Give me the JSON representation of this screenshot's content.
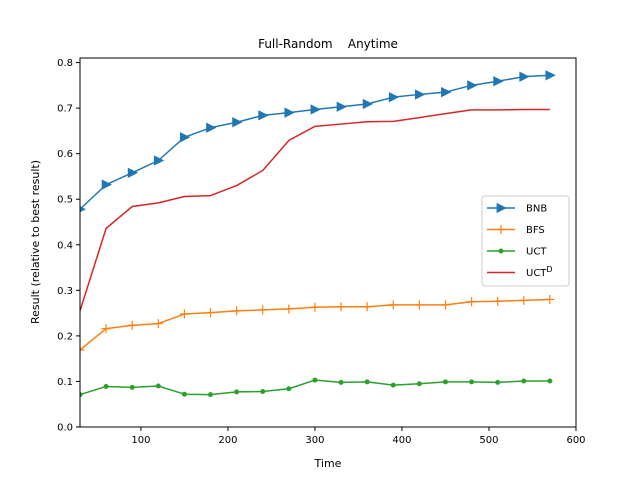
{
  "chart_data": {
    "type": "line",
    "title": "Full-Random    Anytime",
    "xlabel": "Time",
    "ylabel": "Result (relative to best result)",
    "xlim": [
      30,
      600
    ],
    "ylim": [
      0.0,
      0.81
    ],
    "xticks": [
      100,
      200,
      300,
      400,
      500,
      600
    ],
    "yticks": [
      0.0,
      0.1,
      0.2,
      0.3,
      0.4,
      0.5,
      0.6,
      0.7,
      0.8
    ],
    "legend_position": "center-right",
    "grid": false,
    "x": [
      30,
      60,
      90,
      120,
      150,
      180,
      210,
      240,
      270,
      300,
      330,
      360,
      390,
      420,
      450,
      480,
      510,
      540,
      570
    ],
    "series": [
      {
        "name": "BNB",
        "color": "#1f77b4",
        "marker": "triangle-right",
        "values": [
          0.478,
          0.532,
          0.558,
          0.585,
          0.636,
          0.657,
          0.669,
          0.684,
          0.69,
          0.697,
          0.703,
          0.709,
          0.724,
          0.73,
          0.735,
          0.75,
          0.759,
          0.769,
          0.772
        ]
      },
      {
        "name": "BFS",
        "color": "#ff7f0e",
        "marker": "plus",
        "values": [
          0.169,
          0.216,
          0.223,
          0.227,
          0.248,
          0.251,
          0.255,
          0.257,
          0.259,
          0.263,
          0.264,
          0.264,
          0.268,
          0.268,
          0.268,
          0.275,
          0.276,
          0.278,
          0.28
        ]
      },
      {
        "name": "UCT",
        "color": "#2ca02c",
        "marker": "dot",
        "values": [
          0.071,
          0.089,
          0.087,
          0.09,
          0.072,
          0.071,
          0.077,
          0.078,
          0.084,
          0.103,
          0.098,
          0.099,
          0.092,
          0.095,
          0.099,
          0.099,
          0.098,
          0.101,
          0.101
        ]
      },
      {
        "name": "UCT",
        "name_sup": "D",
        "color": "#d62728",
        "marker": "none",
        "values": [
          0.255,
          0.436,
          0.484,
          0.492,
          0.506,
          0.508,
          0.53,
          0.563,
          0.629,
          0.66,
          0.665,
          0.67,
          0.671,
          0.679,
          0.688,
          0.696,
          0.696,
          0.697,
          0.697
        ]
      }
    ]
  }
}
